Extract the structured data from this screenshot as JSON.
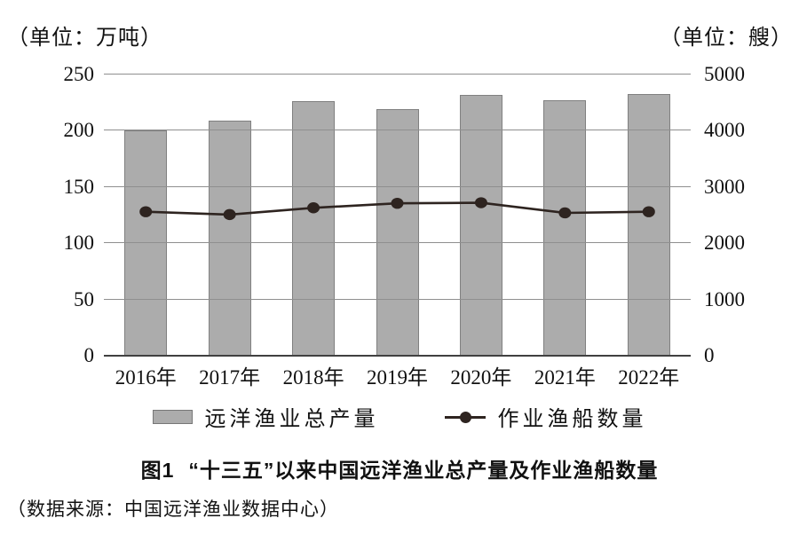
{
  "axes": {
    "left_unit": "（单位：万吨）",
    "right_unit": "（单位：艘）",
    "left_ticks": [
      "0",
      "50",
      "100",
      "150",
      "200",
      "250"
    ],
    "right_ticks": [
      "0",
      "1000",
      "2000",
      "3000",
      "4000",
      "5000"
    ]
  },
  "chart_data": {
    "type": "combo-bar-line",
    "categories": [
      "2016年",
      "2017年",
      "2018年",
      "2019年",
      "2020年",
      "2021年",
      "2022年"
    ],
    "series": [
      {
        "name": "远洋渔业总产量",
        "type": "bar",
        "axis": "left",
        "values": [
          200,
          209,
          226,
          219,
          232,
          227,
          233
        ]
      },
      {
        "name": "作业渔船数量",
        "type": "line",
        "axis": "right",
        "values": [
          2560,
          2510,
          2630,
          2710,
          2720,
          2540,
          2560
        ]
      }
    ],
    "left_axis": {
      "min": 0,
      "max": 250,
      "step": 50,
      "unit": "万吨"
    },
    "right_axis": {
      "min": 0,
      "max": 5000,
      "step": 1000,
      "unit": "艘"
    },
    "grid": true,
    "legend_position": "bottom",
    "title": "图1 “十三五”以来中国远洋渔业总产量及作业渔船数量"
  },
  "legend": {
    "bar_label": "远洋渔业总产量",
    "line_label": "作业渔船数量"
  },
  "caption": {
    "figure_label": "图1",
    "title": "“十三五”以来中国远洋渔业总产量及作业渔船数量"
  },
  "source": "（数据来源：中国远洋渔业数据中心）",
  "colors": {
    "bar_fill": "#ACACAC",
    "bar_border": "#808080",
    "line": "#2E2420",
    "grid": "#8F8F8F",
    "baseline": "#404040",
    "text": "#111111"
  }
}
